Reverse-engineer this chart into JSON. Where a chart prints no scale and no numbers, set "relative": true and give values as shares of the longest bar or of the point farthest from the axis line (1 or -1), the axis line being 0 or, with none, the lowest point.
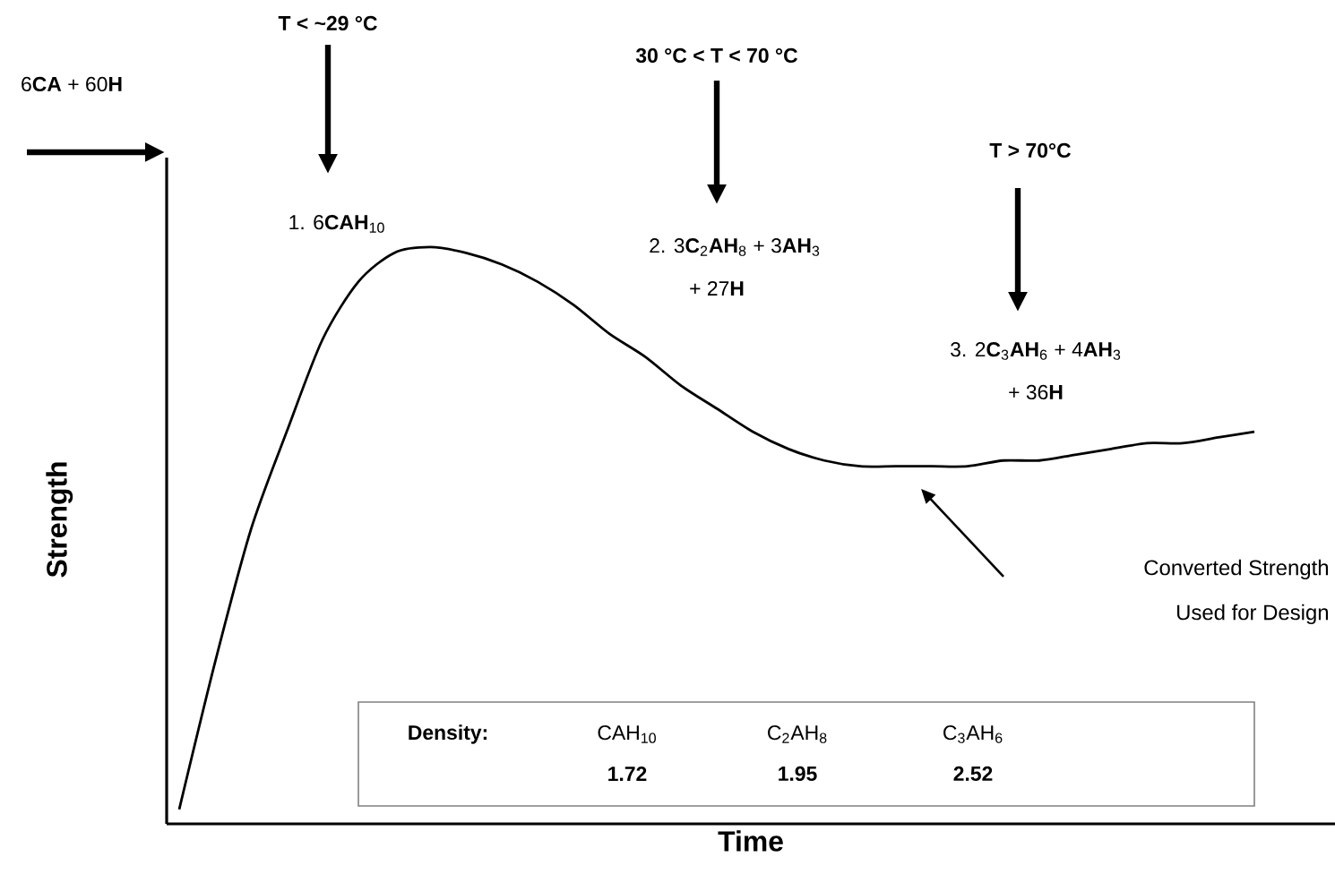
{
  "chart_data": {
    "type": "line",
    "relative": true,
    "xlabel": "Time",
    "ylabel": "Strength",
    "categories": [
      null,
      null,
      null,
      null,
      null,
      null,
      null,
      null,
      null,
      null,
      null,
      null,
      null,
      null,
      null,
      null,
      null,
      null,
      null,
      null,
      null,
      null,
      null,
      null,
      null,
      null,
      null,
      null,
      null,
      null,
      null
    ],
    "series": [
      {
        "color": "#000000",
        "values": [
          0.025,
          0.28,
          0.51,
          0.68,
          0.84,
          0.94,
          0.99,
          1.0,
          0.99,
          0.97,
          0.94,
          0.9,
          0.85,
          0.81,
          0.76,
          0.72,
          0.68,
          0.65,
          0.63,
          0.62,
          0.62,
          0.62,
          0.62,
          0.63,
          0.63,
          0.64,
          0.65,
          0.66,
          0.66,
          0.67,
          0.68
        ]
      }
    ],
    "annotations": [
      "6**CA** + 60**H**",
      "T < ~29 °C",
      "1.  6**CAH**$_{10}$",
      "30 °C < T < 70 °C",
      "2.  3**C**$_{2}$**AH**$_{8}$ + 3**AH**$_{3}$",
      "+ 27**H**",
      "T > 70°C",
      "3.  2**C**$_{3}$**AH**$_{6}$ + 4**AH**$_{3}$",
      "+ 36**H**",
      "Converted Strength",
      "Used for Design",
      "Density:",
      "CAH$_{10}$",
      "1.72",
      "C$_{2}$AH$_{8}$",
      "1.95",
      "C$_{3}$AH$_{6}$",
      "2.52"
    ]
  }
}
